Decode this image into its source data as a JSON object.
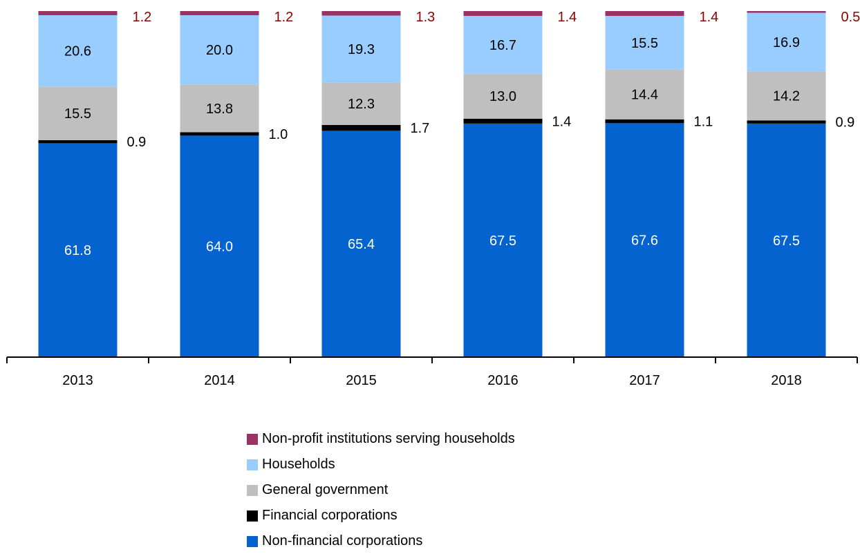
{
  "chart_data": {
    "type": "bar",
    "stacked": true,
    "categories": [
      "2013",
      "2014",
      "2015",
      "2016",
      "2017",
      "2018"
    ],
    "series": [
      {
        "name": "Non-financial corporations",
        "color": "#0563cf",
        "values": [
          61.8,
          64.0,
          65.4,
          67.5,
          67.6,
          67.5
        ]
      },
      {
        "name": "Financial corporations",
        "color": "#000000",
        "values": [
          0.9,
          1.0,
          1.7,
          1.4,
          1.1,
          0.9
        ]
      },
      {
        "name": "General government",
        "color": "#bfbfbf",
        "values": [
          15.5,
          13.8,
          12.3,
          13.0,
          14.4,
          14.2
        ]
      },
      {
        "name": "Households",
        "color": "#99ccff",
        "values": [
          20.6,
          20.0,
          19.3,
          16.7,
          15.5,
          16.9
        ]
      },
      {
        "name": "Non-profit institutions serving households",
        "color": "#993366",
        "values": [
          1.2,
          1.2,
          1.3,
          1.4,
          1.4,
          0.5
        ]
      }
    ],
    "legend_position": "bottom",
    "grid": false,
    "label_colors": {
      "outside_small": "#000000",
      "outside_top": "#8b0000"
    }
  },
  "legend": [
    {
      "label": "Non-profit institutions serving households",
      "color": "#993366"
    },
    {
      "label": "Households",
      "color": "#99ccff"
    },
    {
      "label": "General government",
      "color": "#bfbfbf"
    },
    {
      "label": "Financial corporations",
      "color": "#000000"
    },
    {
      "label": "Non-financial corporations",
      "color": "#0563cf"
    }
  ]
}
